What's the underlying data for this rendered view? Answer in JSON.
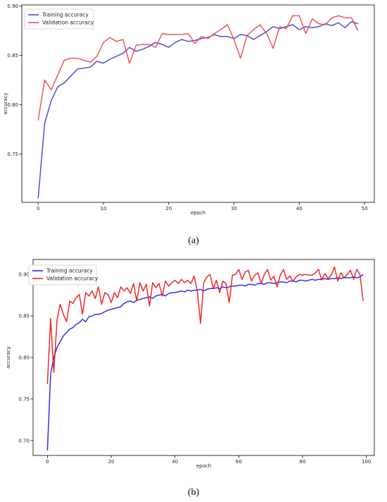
{
  "captions": {
    "a": "(a)",
    "b": "(b)"
  },
  "chart_data": [
    {
      "type": "line",
      "xlabel": "epoch",
      "ylabel": "accuracy",
      "xlim": [
        -2.5,
        51.5
      ],
      "ylim": [
        0.701,
        0.901
      ],
      "xticks": [
        0,
        10,
        20,
        30,
        40,
        50
      ],
      "yticks": [
        0.75,
        0.8,
        0.85,
        0.9
      ],
      "legend": "upper-left",
      "grid": false,
      "series": [
        {
          "name": "Training accuracy",
          "color": "#3b3bd6",
          "x": [
            0,
            1,
            2,
            3,
            4,
            5,
            6,
            7,
            8,
            9,
            10,
            11,
            12,
            13,
            14,
            15,
            16,
            17,
            18,
            19,
            20,
            21,
            22,
            23,
            24,
            25,
            26,
            27,
            28,
            29,
            30,
            31,
            32,
            33,
            34,
            35,
            36,
            37,
            38,
            39,
            40,
            41,
            42,
            43,
            44,
            45,
            46,
            47,
            48,
            49
          ],
          "values": [
            0.705,
            0.781,
            0.804,
            0.818,
            0.822,
            0.829,
            0.836,
            0.837,
            0.838,
            0.844,
            0.842,
            0.846,
            0.849,
            0.852,
            0.858,
            0.854,
            0.856,
            0.859,
            0.863,
            0.861,
            0.858,
            0.863,
            0.866,
            0.864,
            0.865,
            0.867,
            0.868,
            0.871,
            0.869,
            0.869,
            0.867,
            0.871,
            0.87,
            0.866,
            0.87,
            0.874,
            0.879,
            0.877,
            0.879,
            0.881,
            0.876,
            0.879,
            0.878,
            0.879,
            0.882,
            0.88,
            0.883,
            0.878,
            0.884,
            0.882
          ]
        },
        {
          "name": "Validation accuracy",
          "color": "#ee4444",
          "x": [
            0,
            1,
            2,
            3,
            4,
            5,
            6,
            7,
            8,
            9,
            10,
            11,
            12,
            13,
            14,
            15,
            16,
            17,
            18,
            19,
            20,
            21,
            22,
            23,
            24,
            25,
            26,
            27,
            28,
            29,
            30,
            31,
            32,
            33,
            34,
            35,
            36,
            37,
            38,
            39,
            40,
            41,
            42,
            43,
            44,
            45,
            46,
            47,
            48,
            49
          ],
          "values": [
            0.784,
            0.825,
            0.815,
            0.83,
            0.845,
            0.847,
            0.847,
            0.845,
            0.843,
            0.849,
            0.863,
            0.868,
            0.864,
            0.866,
            0.842,
            0.86,
            0.861,
            0.861,
            0.858,
            0.872,
            0.871,
            0.871,
            0.871,
            0.872,
            0.862,
            0.869,
            0.867,
            0.872,
            0.876,
            0.881,
            0.866,
            0.847,
            0.87,
            0.876,
            0.881,
            0.872,
            0.857,
            0.879,
            0.877,
            0.89,
            0.89,
            0.872,
            0.887,
            0.882,
            0.881,
            0.888,
            0.89,
            0.888,
            0.888,
            0.875
          ]
        }
      ]
    },
    {
      "type": "line",
      "xlabel": "epoch",
      "ylabel": "accuracy",
      "xlim": [
        -4.5,
        102.5
      ],
      "ylim": [
        0.682,
        0.918
      ],
      "xticks": [
        0,
        20,
        40,
        60,
        80,
        100
      ],
      "yticks": [
        0.7,
        0.75,
        0.8,
        0.85,
        0.9
      ],
      "legend": "upper-left",
      "grid": false,
      "series": [
        {
          "name": "Training accuracy",
          "color": "#1a1aee",
          "x": [
            0,
            1,
            2,
            3,
            4,
            5,
            6,
            7,
            8,
            9,
            10,
            11,
            12,
            13,
            14,
            15,
            16,
            17,
            18,
            19,
            20,
            21,
            22,
            23,
            24,
            25,
            26,
            27,
            28,
            29,
            30,
            31,
            32,
            33,
            34,
            35,
            36,
            37,
            38,
            39,
            40,
            41,
            42,
            43,
            44,
            45,
            46,
            47,
            48,
            49,
            50,
            51,
            52,
            53,
            54,
            55,
            56,
            57,
            58,
            59,
            60,
            61,
            62,
            63,
            64,
            65,
            66,
            67,
            68,
            69,
            70,
            71,
            72,
            73,
            74,
            75,
            76,
            77,
            78,
            79,
            80,
            81,
            82,
            83,
            84,
            85,
            86,
            87,
            88,
            89,
            90,
            91,
            92,
            93,
            94,
            95,
            96,
            97,
            98,
            99
          ],
          "values": [
            0.688,
            0.78,
            0.8,
            0.812,
            0.819,
            0.826,
            0.83,
            0.834,
            0.836,
            0.84,
            0.842,
            0.846,
            0.843,
            0.849,
            0.85,
            0.852,
            0.852,
            0.853,
            0.855,
            0.857,
            0.858,
            0.859,
            0.86,
            0.861,
            0.865,
            0.867,
            0.868,
            0.866,
            0.869,
            0.87,
            0.871,
            0.872,
            0.873,
            0.871,
            0.874,
            0.875,
            0.876,
            0.874,
            0.877,
            0.878,
            0.878,
            0.879,
            0.88,
            0.879,
            0.881,
            0.88,
            0.881,
            0.881,
            0.882,
            0.88,
            0.882,
            0.883,
            0.883,
            0.884,
            0.883,
            0.885,
            0.884,
            0.885,
            0.886,
            0.886,
            0.887,
            0.887,
            0.886,
            0.888,
            0.888,
            0.887,
            0.889,
            0.889,
            0.888,
            0.89,
            0.89,
            0.889,
            0.89,
            0.891,
            0.891,
            0.89,
            0.892,
            0.892,
            0.891,
            0.893,
            0.893,
            0.892,
            0.893,
            0.894,
            0.893,
            0.894,
            0.894,
            0.895,
            0.894,
            0.895,
            0.895,
            0.896,
            0.895,
            0.896,
            0.896,
            0.896,
            0.897,
            0.896,
            0.897,
            0.9
          ]
        },
        {
          "name": "Validation accuracy",
          "color": "#ee1111",
          "x": [
            0,
            1,
            2,
            3,
            4,
            5,
            6,
            7,
            8,
            9,
            10,
            11,
            12,
            13,
            14,
            15,
            16,
            17,
            18,
            19,
            20,
            21,
            22,
            23,
            24,
            25,
            26,
            27,
            28,
            29,
            30,
            31,
            32,
            33,
            34,
            35,
            36,
            37,
            38,
            39,
            40,
            41,
            42,
            43,
            44,
            45,
            46,
            47,
            48,
            49,
            50,
            51,
            52,
            53,
            54,
            55,
            56,
            57,
            58,
            59,
            60,
            61,
            62,
            63,
            64,
            65,
            66,
            67,
            68,
            69,
            70,
            71,
            72,
            73,
            74,
            75,
            76,
            77,
            78,
            79,
            80,
            81,
            82,
            83,
            84,
            85,
            86,
            87,
            88,
            89,
            90,
            91,
            92,
            93,
            94,
            95,
            96,
            97,
            98,
            99
          ],
          "values": [
            0.768,
            0.847,
            0.782,
            0.845,
            0.864,
            0.852,
            0.843,
            0.868,
            0.865,
            0.872,
            0.876,
            0.852,
            0.878,
            0.874,
            0.88,
            0.871,
            0.885,
            0.864,
            0.878,
            0.876,
            0.866,
            0.878,
            0.872,
            0.885,
            0.88,
            0.884,
            0.877,
            0.889,
            0.868,
            0.89,
            0.88,
            0.888,
            0.862,
            0.89,
            0.884,
            0.889,
            0.874,
            0.892,
            0.886,
            0.89,
            0.893,
            0.889,
            0.894,
            0.89,
            0.893,
            0.889,
            0.898,
            0.88,
            0.841,
            0.89,
            0.897,
            0.9,
            0.883,
            0.893,
            0.878,
            0.892,
            0.889,
            0.866,
            0.899,
            0.9,
            0.906,
            0.894,
            0.903,
            0.905,
            0.892,
            0.899,
            0.902,
            0.889,
            0.9,
            0.906,
            0.893,
            0.898,
            0.885,
            0.899,
            0.906,
            0.894,
            0.898,
            0.892,
            0.897,
            0.9,
            0.899,
            0.9,
            0.899,
            0.899,
            0.902,
            0.906,
            0.893,
            0.901,
            0.895,
            0.899,
            0.909,
            0.892,
            0.902,
            0.896,
            0.9,
            0.905,
            0.894,
            0.906,
            0.9,
            0.868
          ]
        }
      ]
    }
  ]
}
